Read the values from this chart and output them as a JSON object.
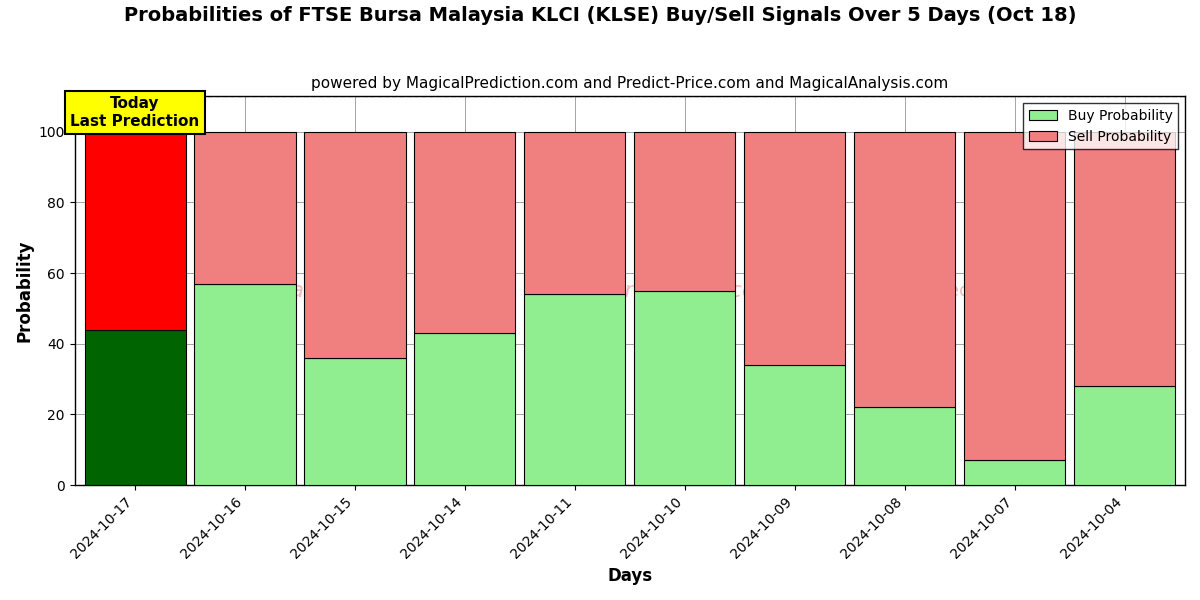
{
  "title": "Probabilities of FTSE Bursa Malaysia KLCI (KLSE) Buy/Sell Signals Over 5 Days (Oct 18)",
  "subtitle": "powered by MagicalPrediction.com and Predict-Price.com and MagicalAnalysis.com",
  "xlabel": "Days",
  "ylabel": "Probability",
  "categories": [
    "2024-10-17",
    "2024-10-16",
    "2024-10-15",
    "2024-10-14",
    "2024-10-11",
    "2024-10-10",
    "2024-10-09",
    "2024-10-08",
    "2024-10-07",
    "2024-10-04"
  ],
  "buy_values": [
    44,
    57,
    36,
    43,
    54,
    55,
    34,
    22,
    7,
    28
  ],
  "sell_values": [
    56,
    43,
    64,
    57,
    46,
    45,
    66,
    78,
    93,
    72
  ],
  "today_buy_color": "#006400",
  "today_sell_color": "#FF0000",
  "buy_color": "#90EE90",
  "sell_color": "#F08080",
  "today_label_bg": "#FFFF00",
  "today_label_text": "Today\nLast Prediction",
  "ylim": [
    0,
    110
  ],
  "yticks": [
    0,
    20,
    40,
    60,
    80,
    100
  ],
  "dashed_line_y": 110,
  "legend_buy_label": "Buy Probability",
  "legend_sell_label": "Sell Probability",
  "title_fontsize": 14,
  "subtitle_fontsize": 11,
  "background_color": "#ffffff",
  "bar_width": 0.92
}
